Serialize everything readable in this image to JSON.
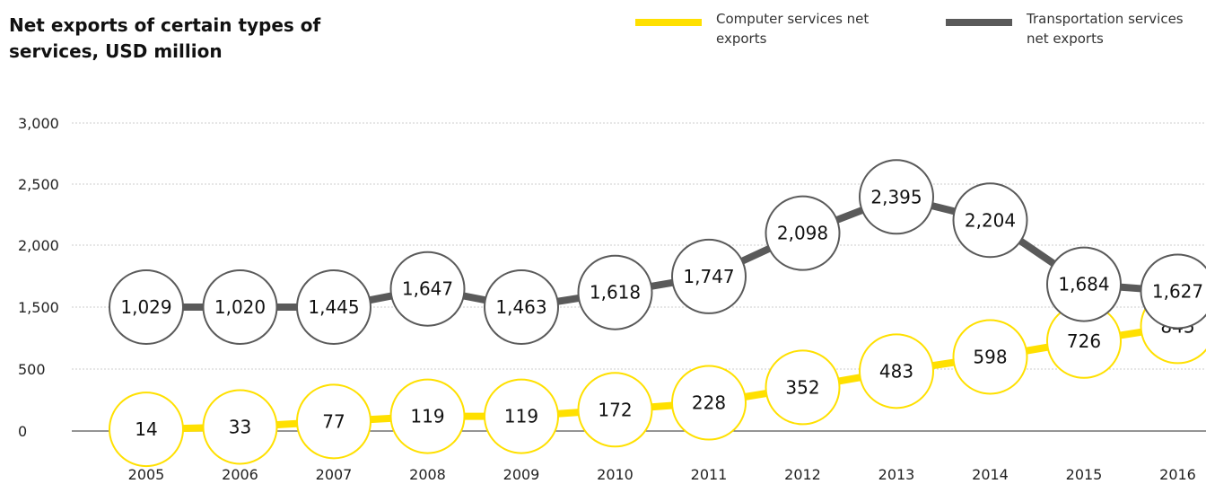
{
  "title": "Net exports of certain types of services, USD million",
  "colors": {
    "computer": "#FFE000",
    "transport": "#5A5A5A",
    "grid": "#cccccc",
    "axis": "#555555"
  },
  "legend": {
    "computer": "Computer services net exports",
    "transport": "Transportation services net exports"
  },
  "chart_data": {
    "type": "line",
    "title": "Net exports of certain types of services, USD million",
    "x": [
      "2005",
      "2006",
      "2007",
      "2008",
      "2009",
      "2010",
      "2011",
      "2012",
      "2013",
      "2014",
      "2015",
      "2016"
    ],
    "y_ticks": [
      "0",
      "500",
      "1,500",
      "2,000",
      "2,500",
      "3,000"
    ],
    "grid": true,
    "legend_position": "top-right",
    "series": [
      {
        "name": "Computer services net exports",
        "color": "#FFE000",
        "values": [
          14,
          33,
          77,
          119,
          119,
          172,
          228,
          352,
          483,
          598,
          726,
          845
        ],
        "labels": [
          "14",
          "33",
          "77",
          "119",
          "119",
          "172",
          "228",
          "352",
          "483",
          "598",
          "726",
          "845"
        ]
      },
      {
        "name": "Transportation services net exports",
        "color": "#5A5A5A",
        "values": [
          1029,
          1020,
          1445,
          1647,
          1463,
          1618,
          1747,
          2098,
          2395,
          2204,
          1684,
          1627
        ],
        "labels": [
          "1,029",
          "1,020",
          "1,445",
          "1,647",
          "1,463",
          "1,618",
          "1,747",
          "2,098",
          "2,395",
          "2,204",
          "1,684",
          "1,627"
        ]
      }
    ]
  }
}
